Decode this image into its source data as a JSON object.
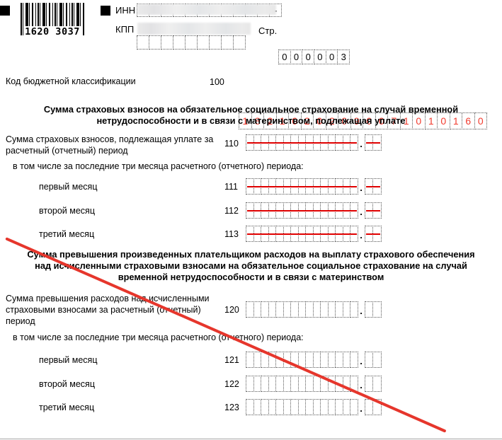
{
  "header": {
    "barcode_digits": "1620 3037",
    "inn_label": "ИНН",
    "kpp_label": "КПП",
    "page_label": "Стр.",
    "page_value": "000003",
    "inn_cells": [
      "",
      "",
      "",
      "",
      "",
      "",
      "",
      "",
      "",
      "",
      "",
      "-"
    ],
    "kpp_cell_count": 9
  },
  "kbk": {
    "label": "Код бюджетной классификации",
    "code": "100",
    "value": "18210202090071010160"
  },
  "field_layout": {
    "ruble_cells": 15,
    "kopeck_cells": 2,
    "decimal_separator": "."
  },
  "section1": {
    "heading": "Сумма страховых взносов на обязательное социальное страхование на случай временной нетрудоспособности и в связи с материнством, подлежащая уплате",
    "total_row": {
      "code": "110",
      "label": "Сумма страховых взносов, подлежащая уплате за расчетный (отчетный) период"
    },
    "months_intro": "в том числе за последние три месяца расчетного (отчетного) периода:",
    "rows": [
      {
        "code": "111",
        "label": "первый месяц"
      },
      {
        "code": "112",
        "label": "второй месяц"
      },
      {
        "code": "113",
        "label": "третий месяц"
      }
    ]
  },
  "section2": {
    "heading": "Сумма превышения произведенных плательщиком расходов на выплату страхового обеспечения над исчисленными страховыми взносами на обязательное социальное страхование на случай временной нетрудоспособности и в связи с материнством",
    "total_row": {
      "code": "120",
      "label": "Сумма превышения расходов над исчисленными страховыми взносами за расчетный (отчетный) период"
    },
    "months_intro": "в том числе за последние три месяца расчетного (отчетного) периода:",
    "rows": [
      {
        "code": "121",
        "label": "первый месяц"
      },
      {
        "code": "122",
        "label": "второй месяц"
      },
      {
        "code": "123",
        "label": "третий месяц"
      }
    ]
  },
  "colors": {
    "strike_red": "#e00000",
    "digit_red": "#f23b2e",
    "diagonal_red": "#e6362c"
  }
}
